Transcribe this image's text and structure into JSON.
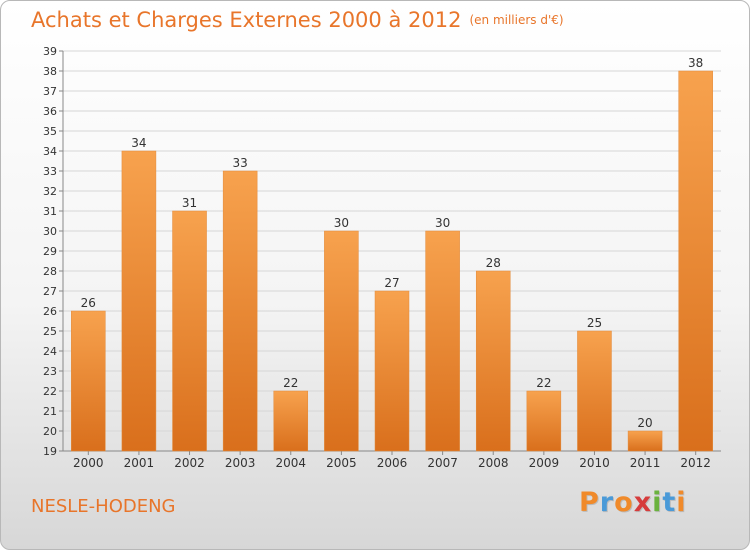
{
  "header": {
    "title": "Achats et Charges Externes 2000 à 2012",
    "unit": "(en milliers d'€)"
  },
  "footer": {
    "town": "NESLE-HODENG",
    "logo_text": "Proxiti"
  },
  "colors": {
    "accent": "#e8752a",
    "bar_light": "#f7a24e",
    "bar_dark": "#d96f1c",
    "logo_letters": [
      "#f08a2a",
      "#4a9ad8",
      "#f08a2a",
      "#d63c3c",
      "#6ab23e",
      "#4a9ad8",
      "#f08a2a"
    ]
  },
  "chart_data": {
    "type": "bar",
    "categories": [
      "2000",
      "2001",
      "2002",
      "2003",
      "2004",
      "2005",
      "2006",
      "2007",
      "2008",
      "2009",
      "2010",
      "2011",
      "2012"
    ],
    "values": [
      26,
      34,
      31,
      33,
      22,
      30,
      27,
      30,
      28,
      22,
      25,
      20,
      38
    ],
    "ylim": [
      19,
      39
    ],
    "yticks": [
      19,
      20,
      21,
      22,
      23,
      24,
      25,
      26,
      27,
      28,
      29,
      30,
      31,
      32,
      33,
      34,
      35,
      36,
      37,
      38,
      39
    ],
    "grid": true,
    "data_labels": true,
    "title": "Achats et Charges Externes 2000 à 2012",
    "xlabel": "",
    "ylabel": ""
  }
}
